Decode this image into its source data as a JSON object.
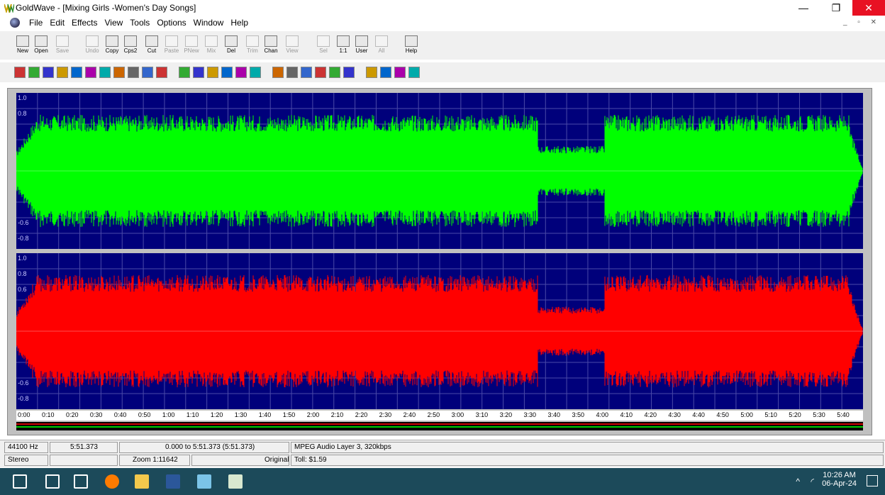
{
  "window": {
    "title": "GoldWave - [Mixing Girls -Women's Day Songs]",
    "min_glyph": "—",
    "max_glyph": "❐",
    "close_glyph": "✕",
    "mdi_controls": "_ ▫ ✕"
  },
  "menu": [
    "File",
    "Edit",
    "Effects",
    "View",
    "Tools",
    "Options",
    "Window",
    "Help"
  ],
  "toolbar_main": [
    {
      "label": "New",
      "icon": "new-file-icon",
      "enabled": true
    },
    {
      "label": "Open",
      "icon": "open-folder-icon",
      "enabled": true
    },
    {
      "label": "Save",
      "icon": "save-disk-icon",
      "enabled": false
    },
    {
      "label": "Undo",
      "icon": "undo-icon",
      "enabled": false
    },
    {
      "label": "Copy",
      "icon": "copy-icon",
      "enabled": true
    },
    {
      "label": "Cps2",
      "icon": "copy-to-icon",
      "enabled": true
    },
    {
      "label": "Cut",
      "icon": "scissors-icon",
      "enabled": true
    },
    {
      "label": "Paste",
      "icon": "paste-icon",
      "enabled": false
    },
    {
      "label": "PNew",
      "icon": "paste-new-icon",
      "enabled": false
    },
    {
      "label": "Mix",
      "icon": "mix-icon",
      "enabled": false
    },
    {
      "label": "Del",
      "icon": "delete-icon",
      "enabled": true
    },
    {
      "label": "Trim",
      "icon": "trim-icon",
      "enabled": false
    },
    {
      "label": "Chan",
      "icon": "channel-icon",
      "enabled": true
    },
    {
      "label": "View",
      "icon": "view-icon",
      "enabled": false
    },
    {
      "label": "Sel",
      "icon": "zoom-selection-icon",
      "enabled": false
    },
    {
      "label": "1:1",
      "icon": "zoom-1to1-icon",
      "enabled": true
    },
    {
      "label": "User",
      "icon": "zoom-user-icon",
      "enabled": true
    },
    {
      "label": "All",
      "icon": "zoom-all-icon",
      "enabled": false
    },
    {
      "label": "Help",
      "icon": "help-book-icon",
      "enabled": true
    }
  ],
  "toolbar_effects": [
    "auto-gain-icon",
    "bandpass-icon",
    "cue-icon",
    "doppler-icon",
    "dynamics-icon",
    "echo-icon",
    "equalizer-icon",
    "fade-icon",
    "filter-icon",
    "flanger-icon",
    "invert-icon",
    "mechanize-icon",
    "offset-icon",
    "pan-icon",
    "pitch-icon",
    "resample-icon",
    "reverb-icon",
    "reverse-icon",
    "silence-icon",
    "spatial-icon",
    "time-warp-icon",
    "volume-icon",
    "noise-reduction-icon",
    "statistics-icon",
    "mixer-icon",
    "marker-icon",
    "expression-icon"
  ],
  "waveform": {
    "top_channel_color": "#00ff00",
    "bottom_channel_color": "#ff0000",
    "background_color": "#00007b",
    "y_labels": [
      "1.0",
      "0.8",
      "0.6",
      "-0.6",
      "-0.8"
    ]
  },
  "timeline": {
    "ticks": [
      "0:00",
      "0:10",
      "0:20",
      "0:30",
      "0:40",
      "0:50",
      "1:00",
      "1:10",
      "1:20",
      "1:30",
      "1:40",
      "1:50",
      "2:00",
      "2:10",
      "2:20",
      "2:30",
      "2:40",
      "2:50",
      "3:00",
      "3:10",
      "3:20",
      "3:30",
      "3:40",
      "3:50",
      "4:00",
      "4:10",
      "4:20",
      "4:30",
      "4:40",
      "4:50",
      "5:00",
      "5:10",
      "5:20",
      "5:30",
      "5:40"
    ]
  },
  "status": {
    "sample_rate": "44100 Hz",
    "length": "5:51.373",
    "range": "0.000 to 5:51.373 (5:51.373)",
    "format": "MPEG Audio Layer 3, 320kbps",
    "channels": "Stereo",
    "zoom": "Zoom 1:11642",
    "state": "Original",
    "toll": "Toll: $1.59"
  },
  "taskbar": {
    "time": "10:26 AM",
    "date": "06-Apr-24",
    "apps": [
      "start-icon",
      "search-icon",
      "task-view-icon",
      "firefox-icon",
      "file-explorer-icon",
      "word-icon",
      "app-icon",
      "goldwave-icon"
    ]
  }
}
